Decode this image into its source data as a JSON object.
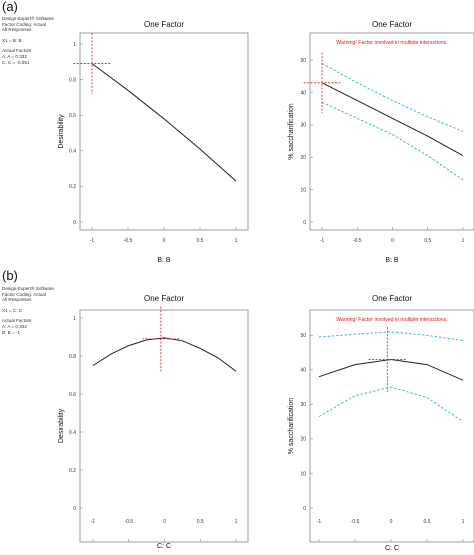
{
  "panels": [
    {
      "label": "(a)",
      "notes": {
        "header": [
          "Design-Expert® Software",
          "Factor Coding: Actual",
          "All Responses"
        ],
        "x_factor": "X1 = B: B",
        "actual_title": "Actual Factors",
        "actual": [
          "A: A = 0.332",
          "C: C = -0.051"
        ]
      }
    },
    {
      "label": "(b)",
      "notes": {
        "header": [
          "Design-Expert® Software",
          "Factor Coding: Actual",
          "All Responses"
        ],
        "x_factor": "X1 = C: C",
        "actual_title": "Actual Factors",
        "actual": [
          "A: A = 0.332",
          "B: B = -1"
        ]
      }
    }
  ],
  "colors": {
    "curve": "#222222",
    "ci": "#2bb5c7",
    "marker": "#e0141e",
    "frame": "#888888"
  },
  "chart_data": [
    {
      "type": "line",
      "title": "One Factor",
      "xlabel": "B: B",
      "ylabel": "Desirability",
      "xlim": [
        -1,
        1
      ],
      "ylim": [
        0,
        1
      ],
      "xticks": [
        -1,
        -0.5,
        0,
        0.5,
        1
      ],
      "yticks": [
        0,
        0.2,
        0.4,
        0.6,
        0.8,
        1
      ],
      "xtick_labels": [
        "-1",
        "-0.5",
        "0",
        "0.5",
        "1"
      ],
      "ytick_labels": [
        "0",
        "0.2",
        "0.4",
        "0.6",
        "0.8",
        "1"
      ],
      "series": [
        {
          "role": "fit",
          "x": [
            -1,
            -0.5,
            0,
            0.5,
            1
          ],
          "y": [
            0.89,
            0.74,
            0.58,
            0.41,
            0.23
          ]
        }
      ],
      "optimum": {
        "x": -1,
        "y": 0.89
      }
    },
    {
      "type": "line",
      "title": "One Factor",
      "annotation": "Warning! Factor involved in multiple interactions.",
      "xlabel": "B: B",
      "ylabel": "% saccharification",
      "xlim": [
        -1,
        1
      ],
      "ylim": [
        0,
        55
      ],
      "xticks": [
        -1,
        -0.5,
        0,
        0.5,
        1
      ],
      "yticks": [
        0,
        10,
        20,
        30,
        40,
        50
      ],
      "xtick_labels": [
        "-1",
        "-0.5",
        "0",
        "0.5",
        "1"
      ],
      "ytick_labels": [
        "0",
        "10",
        "20",
        "30",
        "40",
        "50"
      ],
      "series": [
        {
          "role": "fit",
          "x": [
            -1,
            -0.5,
            0,
            0.5,
            1
          ],
          "y": [
            43,
            37.5,
            32,
            26.5,
            20.5
          ]
        },
        {
          "role": "upper",
          "x": [
            -1,
            -0.5,
            0,
            0.5,
            1
          ],
          "y": [
            49,
            43,
            37.5,
            32.5,
            28
          ]
        },
        {
          "role": "lower",
          "x": [
            -1,
            -0.5,
            0,
            0.5,
            1
          ],
          "y": [
            37,
            32,
            27,
            20.5,
            13
          ]
        }
      ],
      "optimum": {
        "x": -1,
        "y": 43
      }
    },
    {
      "type": "line",
      "title": "One Factor",
      "xlabel": "C: C",
      "ylabel": "Desirability",
      "xlim": [
        -1,
        1
      ],
      "ylim": [
        0,
        1
      ],
      "xticks": [
        -1,
        -0.5,
        0,
        0.5,
        1
      ],
      "yticks": [
        0,
        0.2,
        0.4,
        0.6,
        0.8,
        1
      ],
      "xtick_labels": [
        "-1",
        "-0.5",
        "0",
        "0.5",
        "1"
      ],
      "ytick_labels": [
        "0",
        "0.2",
        "0.4",
        "0.6",
        "0.8",
        "1"
      ],
      "series": [
        {
          "role": "fit",
          "x": [
            -1,
            -0.75,
            -0.5,
            -0.25,
            0,
            0.25,
            0.5,
            0.75,
            1
          ],
          "y": [
            0.75,
            0.81,
            0.855,
            0.885,
            0.895,
            0.88,
            0.84,
            0.79,
            0.72
          ]
        }
      ],
      "optimum": {
        "x": -0.051,
        "y": 0.89
      }
    },
    {
      "type": "line",
      "title": "One Factor",
      "annotation": "Warning! Factor involved in multiple interactions.",
      "xlabel": "C: C",
      "ylabel": "% saccharification",
      "xlim": [
        -1,
        1
      ],
      "ylim": [
        0,
        55
      ],
      "xticks": [
        -1,
        -0.5,
        0,
        0.5,
        1
      ],
      "yticks": [
        0,
        10,
        20,
        30,
        40,
        50
      ],
      "xtick_labels": [
        "-1",
        "-0.5",
        "0",
        "0.5",
        "1"
      ],
      "ytick_labels": [
        "0",
        "10",
        "20",
        "30",
        "40",
        "50"
      ],
      "series": [
        {
          "role": "fit",
          "x": [
            -1,
            -0.5,
            0,
            0.5,
            1
          ],
          "y": [
            38,
            41.5,
            43,
            41.5,
            37
          ]
        },
        {
          "role": "upper",
          "x": [
            -1,
            -0.5,
            0,
            0.5,
            1
          ],
          "y": [
            49.5,
            50.3,
            51,
            50,
            48.5
          ]
        },
        {
          "role": "lower",
          "x": [
            -1,
            -0.5,
            0,
            0.5,
            1
          ],
          "y": [
            26.5,
            32.5,
            35,
            32,
            25
          ]
        }
      ],
      "optimum": {
        "x": -0.051,
        "y": 43
      }
    }
  ]
}
